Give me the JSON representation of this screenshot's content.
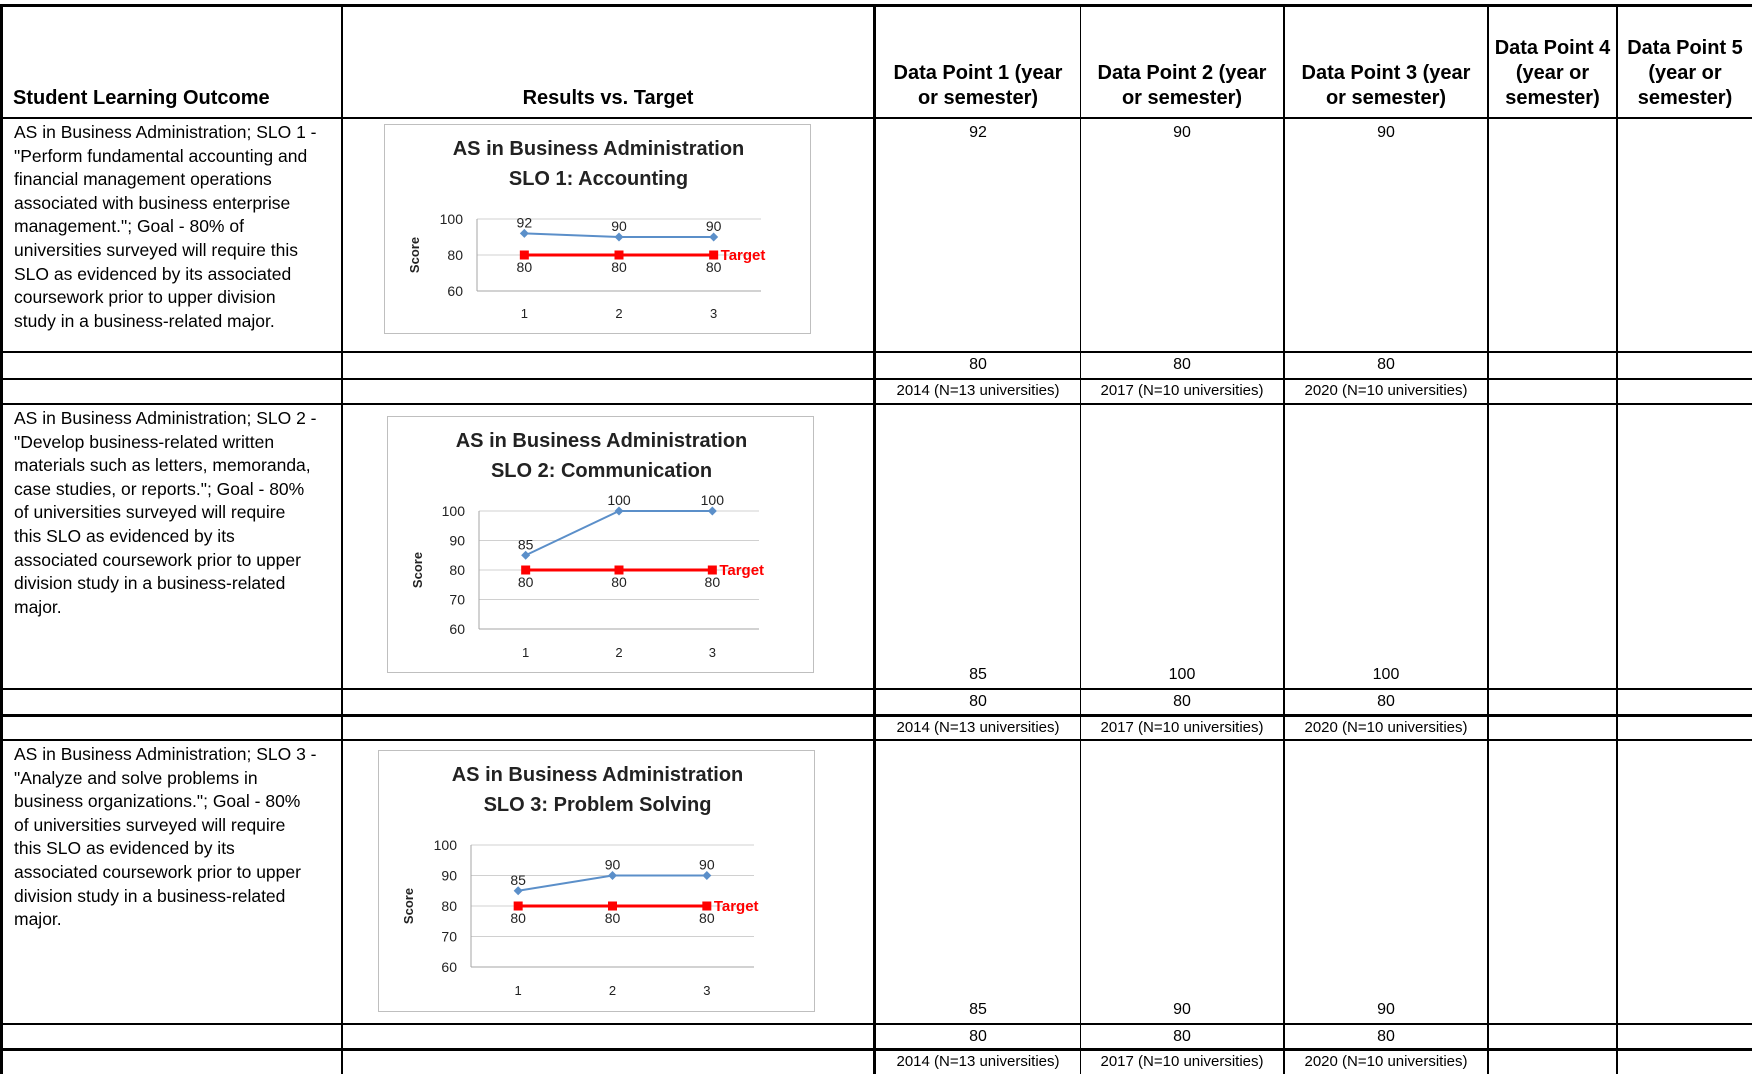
{
  "headers": {
    "outcome": "Student Learning Outcome",
    "results": "Results vs. Target",
    "dp1": [
      "Data Point 1 (year",
      "or semester)"
    ],
    "dp2": [
      "Data Point 2 (year",
      "or semester)"
    ],
    "dp3": [
      "Data Point 3 (year",
      "or semester)"
    ],
    "dp4": [
      "Data Point 4",
      "(year or",
      "semester)"
    ],
    "dp5": [
      "Data Point 5",
      "(year or",
      "semester)"
    ]
  },
  "rows": [
    {
      "outcome_lines": [
        "AS in Business Administration; SLO 1 -",
        "\"Perform fundamental accounting and",
        "financial management operations",
        "associated with business enterprise",
        "management.\"; Goal - 80% of",
        "universities surveyed will require this",
        "SLO as evidenced by its associated",
        "coursework prior to upper division",
        "study in a business-related major."
      ],
      "results": [
        "92",
        "90",
        "90"
      ],
      "targets": [
        "80",
        "80",
        "80"
      ],
      "years": [
        "2014 (N=13 universities)",
        "2017 (N=10 universities)",
        "2020 (N=10 universities)"
      ]
    },
    {
      "outcome_lines": [
        "AS in Business Administration; SLO 2 -",
        "\"Develop business-related written",
        "materials such as letters, memoranda,",
        "case studies, or reports.\"; Goal - 80%",
        "of universities surveyed will require",
        "this SLO as evidenced by its",
        "associated coursework prior to upper",
        "division study in a business-related",
        "major."
      ],
      "results": [
        "85",
        "100",
        "100"
      ],
      "targets": [
        "80",
        "80",
        "80"
      ],
      "years": [
        "2014 (N=13 universities)",
        "2017 (N=10 universities)",
        "2020 (N=10 universities)"
      ]
    },
    {
      "outcome_lines": [
        "AS in Business Administration; SLO 3 -",
        "\"Analyze and solve problems in",
        "business organizations.\"; Goal - 80%",
        "of universities surveyed will require",
        "this SLO as evidenced by its",
        "associated coursework prior to upper",
        "division study in a business-related",
        "major."
      ],
      "results": [
        "85",
        "90",
        "90"
      ],
      "targets": [
        "80",
        "80",
        "80"
      ],
      "years": [
        "2014 (N=13 universities)",
        "2017 (N=10 universities)",
        "2020 (N=10 universities)"
      ]
    }
  ],
  "colors": {
    "results_line": "#5b8fc9",
    "target_line": "#ff0000",
    "grid": "#d0d0d0"
  },
  "chart_data": [
    {
      "type": "line",
      "title": [
        "AS in Business Administration",
        "SLO 1:  Accounting"
      ],
      "categories": [
        "1",
        "2",
        "3"
      ],
      "ylabel": "Score",
      "ylim": [
        60,
        100
      ],
      "yticks": [
        60,
        80,
        100
      ],
      "series": [
        {
          "role": "results",
          "values": [
            92,
            90,
            90
          ]
        },
        {
          "role": "target",
          "name": "Target",
          "values": [
            80,
            80,
            80
          ]
        }
      ],
      "target_label": "Target",
      "grid": true
    },
    {
      "type": "line",
      "title": [
        "AS in Business Administration",
        "SLO 2:  Communication"
      ],
      "categories": [
        "1",
        "2",
        "3"
      ],
      "ylabel": "Score",
      "ylim": [
        60,
        100
      ],
      "yticks": [
        60,
        70,
        80,
        90,
        100
      ],
      "series": [
        {
          "role": "results",
          "values": [
            85,
            100,
            100
          ]
        },
        {
          "role": "target",
          "name": "Target",
          "values": [
            80,
            80,
            80
          ]
        }
      ],
      "target_label": "Target",
      "grid": true
    },
    {
      "type": "line",
      "title": [
        "AS in Business Administration",
        "SLO 3:  Problem Solving"
      ],
      "categories": [
        "1",
        "2",
        "3"
      ],
      "ylabel": "Score",
      "ylim": [
        60,
        100
      ],
      "yticks": [
        60,
        70,
        80,
        90,
        100
      ],
      "series": [
        {
          "role": "results",
          "values": [
            85,
            90,
            90
          ]
        },
        {
          "role": "target",
          "name": "Target",
          "values": [
            80,
            80,
            80
          ]
        }
      ],
      "target_label": "Target",
      "grid": true
    }
  ]
}
